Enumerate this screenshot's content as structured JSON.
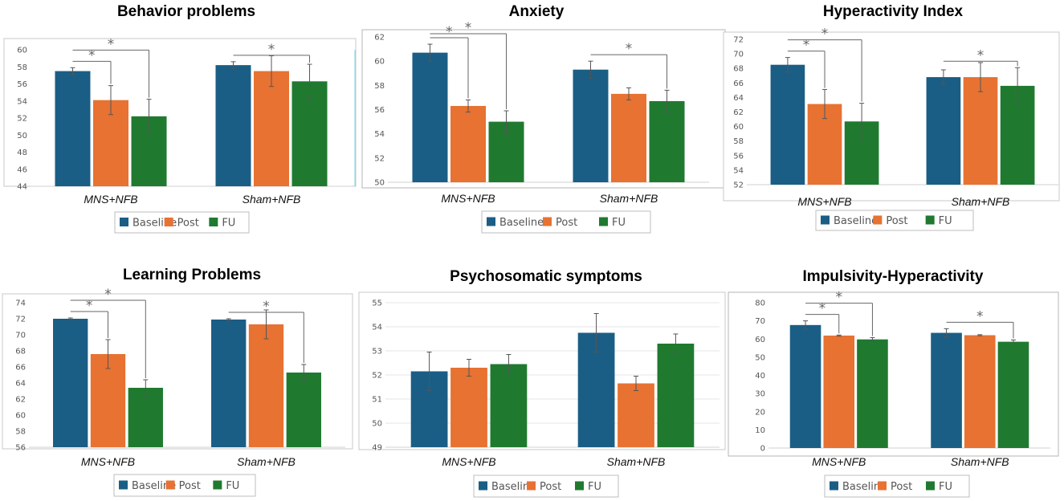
{
  "colors": {
    "Baseline": "#1a5e85",
    "Post": "#e77232",
    "FU": "#1f7a30"
  },
  "chart_data": [
    {
      "type": "bar",
      "title": "Behavior problems",
      "categories": [
        "MNS+NFB",
        "Sham+NFB"
      ],
      "ylim": [
        44,
        60
      ],
      "yticks": [
        "44",
        "46",
        "48",
        "50",
        "52",
        "54",
        "56",
        "58",
        "60"
      ],
      "series": [
        {
          "name": "Baseline",
          "values": [
            57.5,
            58.2
          ],
          "errors": [
            0.4,
            0.4
          ]
        },
        {
          "name": "Post",
          "values": [
            54.1,
            57.5
          ],
          "errors": [
            1.7,
            1.8
          ]
        },
        {
          "name": "FU",
          "values": [
            52.2,
            56.3
          ],
          "errors": [
            2.0,
            2.0
          ]
        }
      ],
      "significance": [
        {
          "category": 0,
          "from": "Baseline",
          "to": "Post",
          "label": "*"
        },
        {
          "category": 0,
          "from": "Baseline",
          "to": "FU",
          "label": "*"
        },
        {
          "category": 1,
          "from": "Baseline",
          "to": "FU",
          "label": "*"
        }
      ],
      "legend": [
        "Baseline",
        "Post",
        "FU"
      ]
    },
    {
      "type": "bar",
      "title": "Anxiety",
      "categories": [
        "MNS+NFB",
        "Sham+NFB"
      ],
      "ylim": [
        50,
        62
      ],
      "yticks": [
        "50",
        "52",
        "54",
        "56",
        "58",
        "60",
        "62"
      ],
      "series": [
        {
          "name": "Baseline",
          "values": [
            60.7,
            59.3
          ],
          "errors": [
            0.7,
            0.7
          ]
        },
        {
          "name": "Post",
          "values": [
            56.3,
            57.3
          ],
          "errors": [
            0.5,
            0.5
          ]
        },
        {
          "name": "FU",
          "values": [
            55.0,
            56.7
          ],
          "errors": [
            0.9,
            0.9
          ]
        }
      ],
      "significance": [
        {
          "category": 0,
          "from": "Baseline",
          "to": "Post",
          "label": "*"
        },
        {
          "category": 0,
          "from": "Baseline",
          "to": "FU",
          "label": "*"
        },
        {
          "category": 1,
          "from": "Baseline",
          "to": "FU",
          "label": "*"
        }
      ],
      "legend": [
        "Baseline",
        "Post",
        "FU"
      ]
    },
    {
      "type": "bar",
      "title": "Hyperactivity Index",
      "categories": [
        "MNS+NFB",
        "Sham+NFB"
      ],
      "ylim": [
        52,
        72
      ],
      "yticks": [
        "52",
        "54",
        "56",
        "58",
        "60",
        "62",
        "64",
        "66",
        "68",
        "70",
        "72"
      ],
      "series": [
        {
          "name": "Baseline",
          "values": [
            68.5,
            66.8
          ],
          "errors": [
            1.0,
            1.0
          ]
        },
        {
          "name": "Post",
          "values": [
            63.1,
            66.8
          ],
          "errors": [
            2.0,
            2.0
          ]
        },
        {
          "name": "FU",
          "values": [
            60.7,
            65.6
          ],
          "errors": [
            2.5,
            2.5
          ]
        }
      ],
      "significance": [
        {
          "category": 0,
          "from": "Baseline",
          "to": "Post",
          "label": "*"
        },
        {
          "category": 0,
          "from": "Baseline",
          "to": "FU",
          "label": "*"
        },
        {
          "category": 1,
          "from": "Baseline",
          "to": "FU",
          "label": "*"
        }
      ],
      "legend": [
        "Baseline",
        "Post",
        "FU"
      ]
    },
    {
      "type": "bar",
      "title": "Learning Problems",
      "categories": [
        "MNS+NFB",
        "Sham+NFB"
      ],
      "ylim": [
        56,
        74
      ],
      "yticks": [
        "56",
        "58",
        "60",
        "62",
        "64",
        "66",
        "68",
        "70",
        "72",
        "74"
      ],
      "series": [
        {
          "name": "Baseline",
          "values": [
            72.0,
            71.9
          ],
          "errors": [
            0.1,
            0.1
          ]
        },
        {
          "name": "Post",
          "values": [
            67.6,
            71.3
          ],
          "errors": [
            1.8,
            1.8
          ]
        },
        {
          "name": "FU",
          "values": [
            63.4,
            65.3
          ],
          "errors": [
            1.0,
            1.0
          ]
        }
      ],
      "significance": [
        {
          "category": 0,
          "from": "Baseline",
          "to": "Post",
          "label": "*"
        },
        {
          "category": 0,
          "from": "Baseline",
          "to": "FU",
          "label": "*"
        },
        {
          "category": 1,
          "from": "Baseline",
          "to": "FU",
          "label": "*"
        }
      ],
      "legend": [
        "Baseline",
        "Post",
        "FU"
      ]
    },
    {
      "type": "bar",
      "title": "Psychosomatic symptoms",
      "categories": [
        "MNS+NFB",
        "Sham+NFB"
      ],
      "ylim": [
        49,
        55
      ],
      "yticks": [
        "49",
        "50",
        "51",
        "52",
        "53",
        "54",
        "55"
      ],
      "series": [
        {
          "name": "Baseline",
          "values": [
            52.15,
            53.75
          ],
          "errors": [
            0.8,
            0.8
          ]
        },
        {
          "name": "Post",
          "values": [
            52.3,
            51.65
          ],
          "errors": [
            0.35,
            0.3
          ]
        },
        {
          "name": "FU",
          "values": [
            52.45,
            53.3
          ],
          "errors": [
            0.4,
            0.4
          ]
        }
      ],
      "significance": [],
      "legend": [
        "Baseline",
        "Post",
        "FU"
      ]
    },
    {
      "type": "bar",
      "title": "Impulsivity-Hyperactivity",
      "categories": [
        "MNS+NFB",
        "Sham+NFB"
      ],
      "ylim": [
        0,
        80
      ],
      "yticks": [
        "0",
        "10",
        "20",
        "30",
        "40",
        "50",
        "60",
        "70",
        "80"
      ],
      "series": [
        {
          "name": "Baseline",
          "values": [
            67.7,
            63.4
          ],
          "errors": [
            2.3,
            2.3
          ]
        },
        {
          "name": "Post",
          "values": [
            61.9,
            62.1
          ],
          "errors": [
            0.3,
            0.3
          ]
        },
        {
          "name": "FU",
          "values": [
            59.8,
            58.5
          ],
          "errors": [
            1.0,
            1.0
          ]
        }
      ],
      "significance": [
        {
          "category": 0,
          "from": "Baseline",
          "to": "Post",
          "label": "*"
        },
        {
          "category": 0,
          "from": "Baseline",
          "to": "FU",
          "label": "*"
        },
        {
          "category": 1,
          "from": "Baseline",
          "to": "FU",
          "label": "*"
        }
      ],
      "legend": [
        "Baseline",
        "Post",
        "FU"
      ]
    }
  ]
}
